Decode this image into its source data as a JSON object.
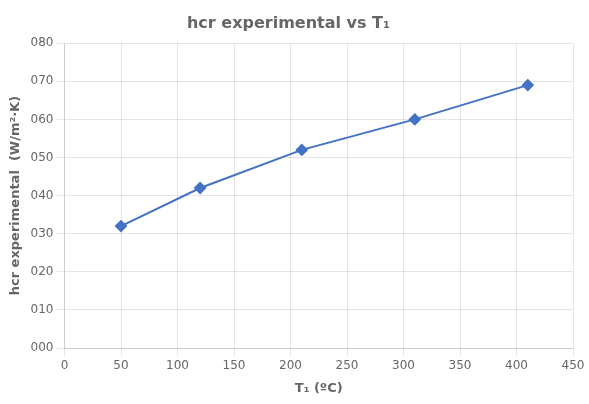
{
  "chart_data": {
    "type": "line",
    "title": "hcr experimental vs T₁",
    "xlabel": "T₁ (ºC)",
    "ylabel": "hcr experimental  (W/m²·K)",
    "x": [
      50,
      120,
      210,
      310,
      410
    ],
    "values": [
      32,
      42,
      52,
      60,
      69
    ],
    "color": "#4472C4",
    "marker": "diamond",
    "xlim": [
      0,
      450
    ],
    "ylim": [
      0,
      80
    ],
    "xticks": [
      0,
      50,
      100,
      150,
      200,
      250,
      300,
      350,
      400,
      450
    ],
    "yticks": [
      {
        "value": 0,
        "label": "000"
      },
      {
        "value": 10,
        "label": "010"
      },
      {
        "value": 20,
        "label": "020"
      },
      {
        "value": 30,
        "label": "030"
      },
      {
        "value": 40,
        "label": "040"
      },
      {
        "value": 50,
        "label": "050"
      },
      {
        "value": 60,
        "label": "060"
      },
      {
        "value": 70,
        "label": "070"
      },
      {
        "value": 80,
        "label": "080"
      }
    ],
    "grid": true
  }
}
